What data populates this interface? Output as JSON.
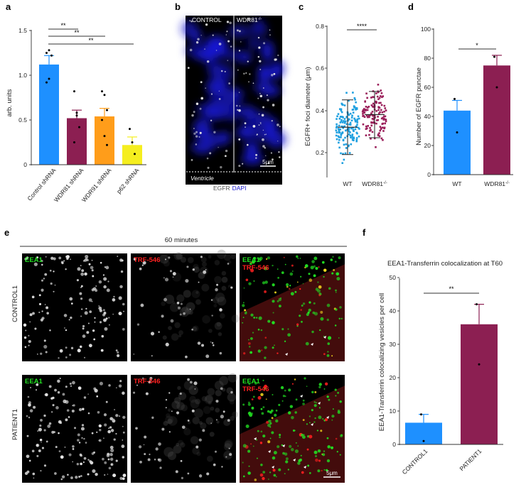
{
  "panels": {
    "a": {
      "letter": "a",
      "ylabel": "arb. units",
      "yticks": [
        "0",
        "0.5",
        "1.0",
        "1.5"
      ],
      "sig": [
        "**",
        "**",
        "**"
      ],
      "chart_data": {
        "type": "bar",
        "categories": [
          "Control shRNA",
          "WDR81 shRNA",
          "WDR91 shRNA",
          "p62 shRNA"
        ],
        "values": [
          1.12,
          0.52,
          0.54,
          0.22
        ],
        "errors": [
          0.1,
          0.09,
          0.09,
          0.09
        ],
        "ylim": [
          0,
          1.5
        ],
        "colors": [
          "#1e90ff",
          "#8c1f52",
          "#ff9d1a",
          "#f5ee1f"
        ],
        "points": [
          [
            1.25,
            1.28,
            1.22,
            0.92,
            0.96
          ],
          [
            0.82,
            0.58,
            0.42,
            0.25,
            0.55
          ],
          [
            0.82,
            0.78,
            0.61,
            0.5,
            0.32,
            0.22
          ],
          [
            0.4,
            0.25,
            0.12
          ]
        ]
      }
    },
    "b": {
      "letter": "b",
      "left_label": "CONTROL",
      "right_label": "WDR81",
      "right_sup": "-/-",
      "scale": "5μm",
      "ventricle": "Ventricle",
      "stain_egfr": "EGFR",
      "stain_dapi": "DAPI"
    },
    "c": {
      "letter": "c",
      "ylabel": "EGFR+ foci diameter (μm)",
      "yticks": [
        "0.2",
        "0.4",
        "0.6",
        "0.8"
      ],
      "sig": "****",
      "xlabels": [
        "WT",
        "WDR81"
      ],
      "sup": "-/-",
      "chart_data": {
        "type": "scatter",
        "categories": [
          "WT",
          "WDR81-/-"
        ],
        "means": [
          0.32,
          0.38
        ],
        "sd": [
          0.13,
          0.11
        ],
        "ylim": [
          0,
          0.8
        ],
        "colors": [
          "#1fa0e0",
          "#9a1f5a"
        ]
      }
    },
    "d": {
      "letter": "d",
      "ylabel": "Number of EGFR punctae",
      "yticks": [
        "0",
        "20",
        "40",
        "60",
        "80",
        "100"
      ],
      "sig": "*",
      "xlabels": [
        "WT",
        "WDR81"
      ],
      "sup": "-/-",
      "chart_data": {
        "type": "bar",
        "categories": [
          "WT",
          "WDR81-/-"
        ],
        "values": [
          44,
          75
        ],
        "errors": [
          7,
          7
        ],
        "ylim": [
          0,
          100
        ],
        "colors": [
          "#1e90ff",
          "#8c1f52"
        ],
        "points": [
          [
            52,
            29
          ],
          [
            81,
            60
          ]
        ]
      }
    },
    "e": {
      "letter": "e",
      "time": "60 minutes",
      "rows": [
        "CONTROL1",
        "PATIENT1"
      ],
      "eea1": "EEA1",
      "trf": "TRF-546",
      "scale": "5μm"
    },
    "f": {
      "letter": "f",
      "title": "EEA1-Transferrin colocalization at T60",
      "ylabel": "EEA1-Transferrin colocalizing vesicles per cell",
      "yticks": [
        "0",
        "10",
        "20",
        "30",
        "40",
        "50"
      ],
      "sig": "**",
      "chart_data": {
        "type": "bar",
        "categories": [
          "CONTROL1",
          "PATIENT1"
        ],
        "values": [
          6.5,
          36
        ],
        "errors": [
          2.5,
          6
        ],
        "ylim": [
          0,
          50
        ],
        "colors": [
          "#1e90ff",
          "#8c1f52"
        ],
        "points": [
          [
            9,
            1
          ],
          [
            42,
            24
          ]
        ]
      }
    }
  },
  "colors": {
    "dapi": "#1818d0",
    "green": "#22e022",
    "red": "#ff2020",
    "label_white": "#ffffff"
  }
}
